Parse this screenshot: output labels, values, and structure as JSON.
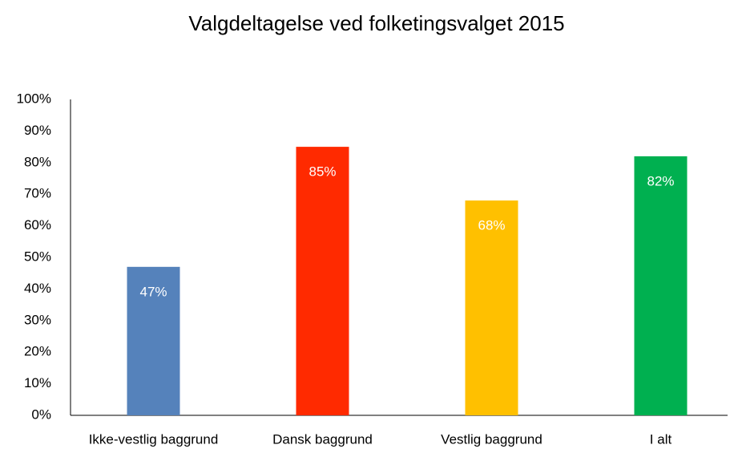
{
  "chart_data": {
    "type": "bar",
    "title": "Valgdeltagelse ved folketingsvalget 2015",
    "categories": [
      "Ikke-vestlig baggrund",
      "Dansk baggrund",
      "Vestlig baggrund",
      "I alt"
    ],
    "values": [
      47,
      85,
      68,
      82
    ],
    "value_labels": [
      "47%",
      "85%",
      "68%",
      "82%"
    ],
    "colors": [
      "#5582bb",
      "#ff2a00",
      "#ffc000",
      "#00b050"
    ],
    "ylim": [
      0,
      100
    ],
    "yticks": [
      {
        "value": 0,
        "label": "0%"
      },
      {
        "value": 10,
        "label": "10%"
      },
      {
        "value": 20,
        "label": "20%"
      },
      {
        "value": 30,
        "label": "30%"
      },
      {
        "value": 40,
        "label": "40%"
      },
      {
        "value": 50,
        "label": "50%"
      },
      {
        "value": 60,
        "label": "60%"
      },
      {
        "value": 70,
        "label": "70%"
      },
      {
        "value": 80,
        "label": "80%"
      },
      {
        "value": 90,
        "label": "90%"
      },
      {
        "value": 100,
        "label": "100%"
      }
    ],
    "grid": false
  }
}
